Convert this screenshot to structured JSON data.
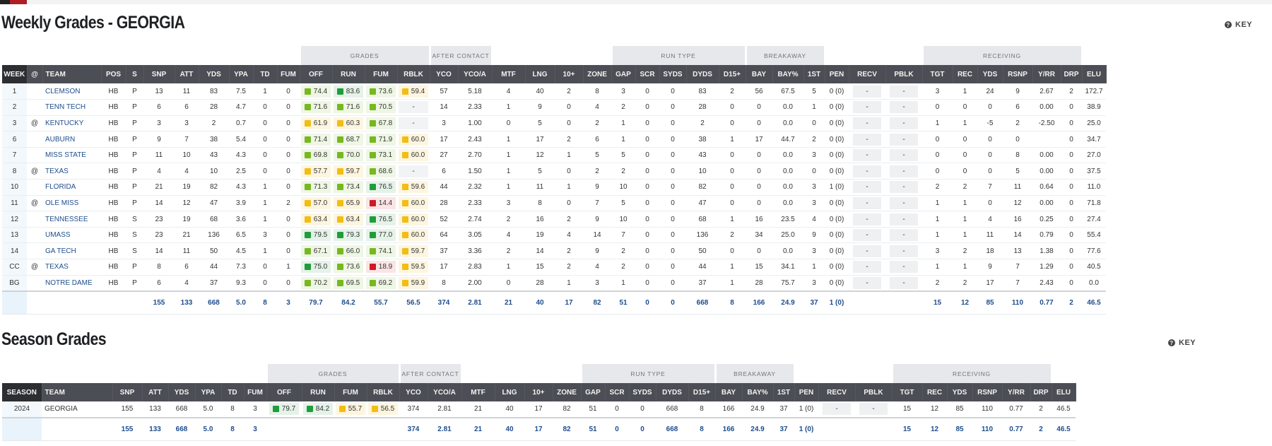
{
  "weekly": {
    "title": "Weekly Grades - GEORGIA",
    "key_label": "KEY",
    "groups": [
      "GRADES",
      "AFTER CONTACT",
      "RUN TYPE",
      "BREAKAWAY",
      "RECEIVING"
    ],
    "headers": [
      "WEEK",
      "@",
      "TEAM",
      "POS",
      "S",
      "SNP",
      "ATT",
      "YDS",
      "YPA",
      "TD",
      "FUM",
      "OFF",
      "RUN",
      "FUM",
      "RBLK",
      "YCO",
      "YCO/A",
      "MTF",
      "LNG",
      "10+",
      "ZONE",
      "GAP",
      "SCR",
      "SYDS",
      "DYDS",
      "D15+",
      "BAY",
      "BAY%",
      "1ST",
      "PEN",
      "RECV",
      "PBLK",
      "TGT",
      "REC",
      "YDS",
      "RSNP",
      "Y/RR",
      "DRP",
      "ELU"
    ],
    "rows": [
      {
        "week": "1",
        "at": "",
        "team": "CLEMSON",
        "pos": "HB",
        "s": "P",
        "snp": "13",
        "att": "11",
        "yds": "83",
        "ypa": "7.5",
        "td": "1",
        "fum": "0",
        "off": {
          "v": "74.4",
          "c": "lgreen"
        },
        "run": {
          "v": "83.6",
          "c": "green"
        },
        "fumg": {
          "v": "73.6",
          "c": "lgreen"
        },
        "rblk": {
          "v": "59.4",
          "c": "yellow"
        },
        "yco": "57",
        "ycoa": "5.18",
        "mtf": "4",
        "lng": "40",
        "ten": "2",
        "zone": "8",
        "gap": "3",
        "scr": "0",
        "syds": "0",
        "dyds": "83",
        "d15": "2",
        "bay": "56",
        "bayp": "67.5",
        "first": "5",
        "pen": "0 (0)",
        "recv": "-",
        "pblk": "-",
        "tgt": "3",
        "rec": "1",
        "ryds": "24",
        "rsnp": "9",
        "yrr": "2.67",
        "drp": "2",
        "elu": "172.7"
      },
      {
        "week": "2",
        "at": "",
        "team": "TENN TECH",
        "pos": "HB",
        "s": "P",
        "snp": "6",
        "att": "6",
        "yds": "28",
        "ypa": "4.7",
        "td": "0",
        "fum": "0",
        "off": {
          "v": "71.6",
          "c": "lgreen"
        },
        "run": {
          "v": "71.6",
          "c": "lgreen"
        },
        "fumg": {
          "v": "70.5",
          "c": "lgreen"
        },
        "rblk": {
          "v": "-",
          "c": "none"
        },
        "yco": "14",
        "ycoa": "2.33",
        "mtf": "1",
        "lng": "9",
        "ten": "0",
        "zone": "4",
        "gap": "2",
        "scr": "0",
        "syds": "0",
        "dyds": "28",
        "d15": "0",
        "bay": "0",
        "bayp": "0.0",
        "first": "1",
        "pen": "0 (0)",
        "recv": "-",
        "pblk": "-",
        "tgt": "0",
        "rec": "0",
        "ryds": "0",
        "rsnp": "6",
        "yrr": "0.00",
        "drp": "0",
        "elu": "38.9"
      },
      {
        "week": "3",
        "at": "@",
        "team": "KENTUCKY",
        "pos": "HB",
        "s": "P",
        "snp": "3",
        "att": "3",
        "yds": "2",
        "ypa": "0.7",
        "td": "0",
        "fum": "0",
        "off": {
          "v": "61.9",
          "c": "yellow"
        },
        "run": {
          "v": "60.3",
          "c": "yellow"
        },
        "fumg": {
          "v": "67.8",
          "c": "lgreen"
        },
        "rblk": {
          "v": "-",
          "c": "none"
        },
        "yco": "3",
        "ycoa": "1.00",
        "mtf": "0",
        "lng": "5",
        "ten": "0",
        "zone": "2",
        "gap": "1",
        "scr": "0",
        "syds": "0",
        "dyds": "2",
        "d15": "0",
        "bay": "0",
        "bayp": "0.0",
        "first": "0",
        "pen": "0 (0)",
        "recv": "-",
        "pblk": "-",
        "tgt": "1",
        "rec": "1",
        "ryds": "-5",
        "rsnp": "2",
        "yrr": "-2.50",
        "drp": "0",
        "elu": "25.0"
      },
      {
        "week": "6",
        "at": "",
        "team": "AUBURN",
        "pos": "HB",
        "s": "P",
        "snp": "9",
        "att": "7",
        "yds": "38",
        "ypa": "5.4",
        "td": "0",
        "fum": "0",
        "off": {
          "v": "71.4",
          "c": "lgreen"
        },
        "run": {
          "v": "68.7",
          "c": "lgreen"
        },
        "fumg": {
          "v": "71.9",
          "c": "lgreen"
        },
        "rblk": {
          "v": "60.0",
          "c": "yellow"
        },
        "yco": "17",
        "ycoa": "2.43",
        "mtf": "1",
        "lng": "17",
        "ten": "2",
        "zone": "6",
        "gap": "1",
        "scr": "0",
        "syds": "0",
        "dyds": "38",
        "d15": "1",
        "bay": "17",
        "bayp": "44.7",
        "first": "2",
        "pen": "0 (0)",
        "recv": "-",
        "pblk": "-",
        "tgt": "0",
        "rec": "0",
        "ryds": "0",
        "rsnp": "0",
        "yrr": "",
        "drp": "0",
        "elu": "34.7"
      },
      {
        "week": "7",
        "at": "",
        "team": "MISS STATE",
        "pos": "HB",
        "s": "P",
        "snp": "11",
        "att": "10",
        "yds": "43",
        "ypa": "4.3",
        "td": "0",
        "fum": "0",
        "off": {
          "v": "69.8",
          "c": "lgreen"
        },
        "run": {
          "v": "70.0",
          "c": "lgreen"
        },
        "fumg": {
          "v": "73.1",
          "c": "lgreen"
        },
        "rblk": {
          "v": "60.0",
          "c": "yellow"
        },
        "yco": "27",
        "ycoa": "2.70",
        "mtf": "1",
        "lng": "12",
        "ten": "1",
        "zone": "5",
        "gap": "5",
        "scr": "0",
        "syds": "0",
        "dyds": "43",
        "d15": "0",
        "bay": "0",
        "bayp": "0.0",
        "first": "3",
        "pen": "0 (0)",
        "recv": "-",
        "pblk": "-",
        "tgt": "0",
        "rec": "0",
        "ryds": "0",
        "rsnp": "8",
        "yrr": "0.00",
        "drp": "0",
        "elu": "27.0"
      },
      {
        "week": "8",
        "at": "@",
        "team": "TEXAS",
        "pos": "HB",
        "s": "P",
        "snp": "4",
        "att": "4",
        "yds": "10",
        "ypa": "2.5",
        "td": "0",
        "fum": "0",
        "off": {
          "v": "57.7",
          "c": "yellow"
        },
        "run": {
          "v": "59.7",
          "c": "yellow"
        },
        "fumg": {
          "v": "68.6",
          "c": "lgreen"
        },
        "rblk": {
          "v": "-",
          "c": "none"
        },
        "yco": "6",
        "ycoa": "1.50",
        "mtf": "1",
        "lng": "5",
        "ten": "0",
        "zone": "2",
        "gap": "2",
        "scr": "0",
        "syds": "0",
        "dyds": "10",
        "d15": "0",
        "bay": "0",
        "bayp": "0.0",
        "first": "0",
        "pen": "0 (0)",
        "recv": "-",
        "pblk": "-",
        "tgt": "0",
        "rec": "0",
        "ryds": "0",
        "rsnp": "5",
        "yrr": "0.00",
        "drp": "0",
        "elu": "37.5"
      },
      {
        "week": "10",
        "at": "",
        "team": "FLORIDA",
        "pos": "HB",
        "s": "P",
        "snp": "21",
        "att": "19",
        "yds": "82",
        "ypa": "4.3",
        "td": "1",
        "fum": "0",
        "off": {
          "v": "71.3",
          "c": "lgreen"
        },
        "run": {
          "v": "73.4",
          "c": "lgreen"
        },
        "fumg": {
          "v": "76.5",
          "c": "green"
        },
        "rblk": {
          "v": "59.6",
          "c": "yellow"
        },
        "yco": "44",
        "ycoa": "2.32",
        "mtf": "1",
        "lng": "11",
        "ten": "1",
        "zone": "9",
        "gap": "10",
        "scr": "0",
        "syds": "0",
        "dyds": "82",
        "d15": "0",
        "bay": "0",
        "bayp": "0.0",
        "first": "3",
        "pen": "1 (0)",
        "recv": "-",
        "pblk": "-",
        "tgt": "2",
        "rec": "2",
        "ryds": "7",
        "rsnp": "11",
        "yrr": "0.64",
        "drp": "0",
        "elu": "11.0"
      },
      {
        "week": "11",
        "at": "@",
        "team": "OLE MISS",
        "pos": "HB",
        "s": "P",
        "snp": "14",
        "att": "12",
        "yds": "47",
        "ypa": "3.9",
        "td": "1",
        "fum": "2",
        "off": {
          "v": "57.0",
          "c": "yellow"
        },
        "run": {
          "v": "65.9",
          "c": "yellow"
        },
        "fumg": {
          "v": "14.4",
          "c": "red"
        },
        "rblk": {
          "v": "60.0",
          "c": "yellow"
        },
        "yco": "28",
        "ycoa": "2.33",
        "mtf": "3",
        "lng": "8",
        "ten": "0",
        "zone": "7",
        "gap": "5",
        "scr": "0",
        "syds": "0",
        "dyds": "47",
        "d15": "0",
        "bay": "0",
        "bayp": "0.0",
        "first": "3",
        "pen": "0 (0)",
        "recv": "-",
        "pblk": "-",
        "tgt": "1",
        "rec": "1",
        "ryds": "0",
        "rsnp": "12",
        "yrr": "0.00",
        "drp": "0",
        "elu": "71.8"
      },
      {
        "week": "12",
        "at": "",
        "team": "TENNESSEE",
        "pos": "HB",
        "s": "S",
        "snp": "23",
        "att": "19",
        "yds": "68",
        "ypa": "3.6",
        "td": "1",
        "fum": "0",
        "off": {
          "v": "63.4",
          "c": "yellow"
        },
        "run": {
          "v": "63.4",
          "c": "yellow"
        },
        "fumg": {
          "v": "76.5",
          "c": "green"
        },
        "rblk": {
          "v": "60.0",
          "c": "yellow"
        },
        "yco": "52",
        "ycoa": "2.74",
        "mtf": "2",
        "lng": "16",
        "ten": "2",
        "zone": "9",
        "gap": "10",
        "scr": "0",
        "syds": "0",
        "dyds": "68",
        "d15": "1",
        "bay": "16",
        "bayp": "23.5",
        "first": "4",
        "pen": "0 (0)",
        "recv": "-",
        "pblk": "-",
        "tgt": "1",
        "rec": "1",
        "ryds": "4",
        "rsnp": "16",
        "yrr": "0.25",
        "drp": "0",
        "elu": "27.4"
      },
      {
        "week": "13",
        "at": "",
        "team": "UMASS",
        "pos": "HB",
        "s": "S",
        "snp": "23",
        "att": "21",
        "yds": "136",
        "ypa": "6.5",
        "td": "3",
        "fum": "0",
        "off": {
          "v": "79.5",
          "c": "green"
        },
        "run": {
          "v": "79.3",
          "c": "green"
        },
        "fumg": {
          "v": "77.0",
          "c": "green"
        },
        "rblk": {
          "v": "60.0",
          "c": "yellow"
        },
        "yco": "64",
        "ycoa": "3.05",
        "mtf": "4",
        "lng": "19",
        "ten": "4",
        "zone": "14",
        "gap": "7",
        "scr": "0",
        "syds": "0",
        "dyds": "136",
        "d15": "2",
        "bay": "34",
        "bayp": "25.0",
        "first": "9",
        "pen": "0 (0)",
        "recv": "-",
        "pblk": "-",
        "tgt": "1",
        "rec": "1",
        "ryds": "11",
        "rsnp": "14",
        "yrr": "0.79",
        "drp": "0",
        "elu": "55.4"
      },
      {
        "week": "14",
        "at": "",
        "team": "GA TECH",
        "pos": "HB",
        "s": "S",
        "snp": "14",
        "att": "11",
        "yds": "50",
        "ypa": "4.5",
        "td": "1",
        "fum": "0",
        "off": {
          "v": "67.1",
          "c": "lgreen"
        },
        "run": {
          "v": "66.0",
          "c": "lgreen"
        },
        "fumg": {
          "v": "74.1",
          "c": "lgreen"
        },
        "rblk": {
          "v": "59.7",
          "c": "yellow"
        },
        "yco": "37",
        "ycoa": "3.36",
        "mtf": "2",
        "lng": "14",
        "ten": "2",
        "zone": "9",
        "gap": "2",
        "scr": "0",
        "syds": "0",
        "dyds": "50",
        "d15": "0",
        "bay": "0",
        "bayp": "0.0",
        "first": "3",
        "pen": "0 (0)",
        "recv": "-",
        "pblk": "-",
        "tgt": "3",
        "rec": "2",
        "ryds": "18",
        "rsnp": "13",
        "yrr": "1.38",
        "drp": "0",
        "elu": "77.6"
      },
      {
        "week": "CC",
        "at": "@",
        "team": "TEXAS",
        "pos": "HB",
        "s": "P",
        "snp": "8",
        "att": "6",
        "yds": "44",
        "ypa": "7.3",
        "td": "0",
        "fum": "1",
        "off": {
          "v": "75.0",
          "c": "green"
        },
        "run": {
          "v": "73.6",
          "c": "lgreen"
        },
        "fumg": {
          "v": "18.9",
          "c": "red"
        },
        "rblk": {
          "v": "59.5",
          "c": "yellow"
        },
        "yco": "17",
        "ycoa": "2.83",
        "mtf": "1",
        "lng": "15",
        "ten": "2",
        "zone": "4",
        "gap": "2",
        "scr": "0",
        "syds": "0",
        "dyds": "44",
        "d15": "1",
        "bay": "15",
        "bayp": "34.1",
        "first": "1",
        "pen": "0 (0)",
        "recv": "-",
        "pblk": "-",
        "tgt": "1",
        "rec": "1",
        "ryds": "9",
        "rsnp": "7",
        "yrr": "1.29",
        "drp": "0",
        "elu": "40.5"
      },
      {
        "week": "BG",
        "at": "",
        "team": "NOTRE DAME",
        "pos": "HB",
        "s": "P",
        "snp": "6",
        "att": "4",
        "yds": "37",
        "ypa": "9.3",
        "td": "0",
        "fum": "0",
        "off": {
          "v": "70.2",
          "c": "lgreen"
        },
        "run": {
          "v": "69.5",
          "c": "lgreen"
        },
        "fumg": {
          "v": "69.2",
          "c": "lgreen"
        },
        "rblk": {
          "v": "59.9",
          "c": "yellow"
        },
        "yco": "8",
        "ycoa": "2.00",
        "mtf": "0",
        "lng": "28",
        "ten": "1",
        "zone": "3",
        "gap": "1",
        "scr": "0",
        "syds": "0",
        "dyds": "37",
        "d15": "1",
        "bay": "28",
        "bayp": "75.7",
        "first": "3",
        "pen": "0 (0)",
        "recv": "-",
        "pblk": "-",
        "tgt": "2",
        "rec": "2",
        "ryds": "17",
        "rsnp": "7",
        "yrr": "2.43",
        "drp": "0",
        "elu": "0.0"
      }
    ],
    "totals": {
      "snp": "155",
      "att": "133",
      "yds": "668",
      "ypa": "5.0",
      "td": "8",
      "fum": "3",
      "off": "79.7",
      "run": "84.2",
      "fumg": "55.7",
      "rblk": "56.5",
      "yco": "374",
      "ycoa": "2.81",
      "mtf": "21",
      "lng": "40",
      "ten": "17",
      "zone": "82",
      "gap": "51",
      "scr": "0",
      "syds": "0",
      "dyds": "668",
      "d15": "8",
      "bay": "166",
      "bayp": "24.9",
      "first": "37",
      "pen": "1 (0)",
      "recv": "",
      "pblk": "",
      "tgt": "15",
      "rec": "12",
      "ryds": "85",
      "rsnp": "110",
      "yrr": "0.77",
      "drp": "2",
      "elu": "46.5"
    }
  },
  "season": {
    "title": "Season Grades",
    "key_label": "KEY",
    "groups": [
      "GRADES",
      "AFTER CONTACT",
      "RUN TYPE",
      "BREAKAWAY",
      "RECEIVING"
    ],
    "headers": [
      "SEASON",
      "TEAM",
      "SNP",
      "ATT",
      "YDS",
      "YPA",
      "TD",
      "FUM",
      "OFF",
      "RUN",
      "FUM",
      "RBLK",
      "YCO",
      "YCO/A",
      "MTF",
      "LNG",
      "10+",
      "ZONE",
      "GAP",
      "SCR",
      "SYDS",
      "DYDS",
      "D15+",
      "BAY",
      "BAY%",
      "1ST",
      "PEN",
      "RECV",
      "PBLK",
      "TGT",
      "REC",
      "YDS",
      "RSNP",
      "Y/RR",
      "DRP",
      "ELU"
    ],
    "row": {
      "season": "2024",
      "team": "GEORGIA",
      "snp": "155",
      "att": "133",
      "yds": "668",
      "ypa": "5.0",
      "td": "8",
      "fum": "3",
      "off": {
        "v": "79.7",
        "c": "green"
      },
      "run": {
        "v": "84.2",
        "c": "green"
      },
      "fumg": {
        "v": "55.7",
        "c": "yellow"
      },
      "rblk": {
        "v": "56.5",
        "c": "yellow"
      },
      "yco": "374",
      "ycoa": "2.81",
      "mtf": "21",
      "lng": "40",
      "ten": "17",
      "zone": "82",
      "gap": "51",
      "scr": "0",
      "syds": "0",
      "dyds": "668",
      "d15": "8",
      "bay": "166",
      "bayp": "24.9",
      "first": "37",
      "pen": "1 (0)",
      "recv": "-",
      "pblk": "-",
      "tgt": "15",
      "rec": "12",
      "ryds": "85",
      "rsnp": "110",
      "yrr": "0.77",
      "drp": "2",
      "elu": "46.5"
    },
    "totals": {
      "snp": "155",
      "att": "133",
      "yds": "668",
      "ypa": "5.0",
      "td": "8",
      "fum": "3",
      "yco": "374",
      "ycoa": "2.81",
      "mtf": "21",
      "lng": "40",
      "ten": "17",
      "zone": "82",
      "gap": "51",
      "scr": "0",
      "syds": "0",
      "dyds": "668",
      "d15": "8",
      "bay": "166",
      "bayp": "24.9",
      "first": "37",
      "pen": "1 (0)",
      "tgt": "15",
      "rec": "12",
      "ryds": "85",
      "rsnp": "110",
      "yrr": "0.77",
      "drp": "2",
      "elu": "46.5"
    }
  },
  "colors": {
    "header_bg": "#4b4e54",
    "week_header_bg": "#2c2e32",
    "group_bg": "#e6e8eb",
    "link": "#1e4d8c",
    "grade_green": "#1e9d3b",
    "grade_light_green": "#77b81f",
    "grade_yellow": "#f3bd12",
    "grade_red": "#cc1a26"
  }
}
